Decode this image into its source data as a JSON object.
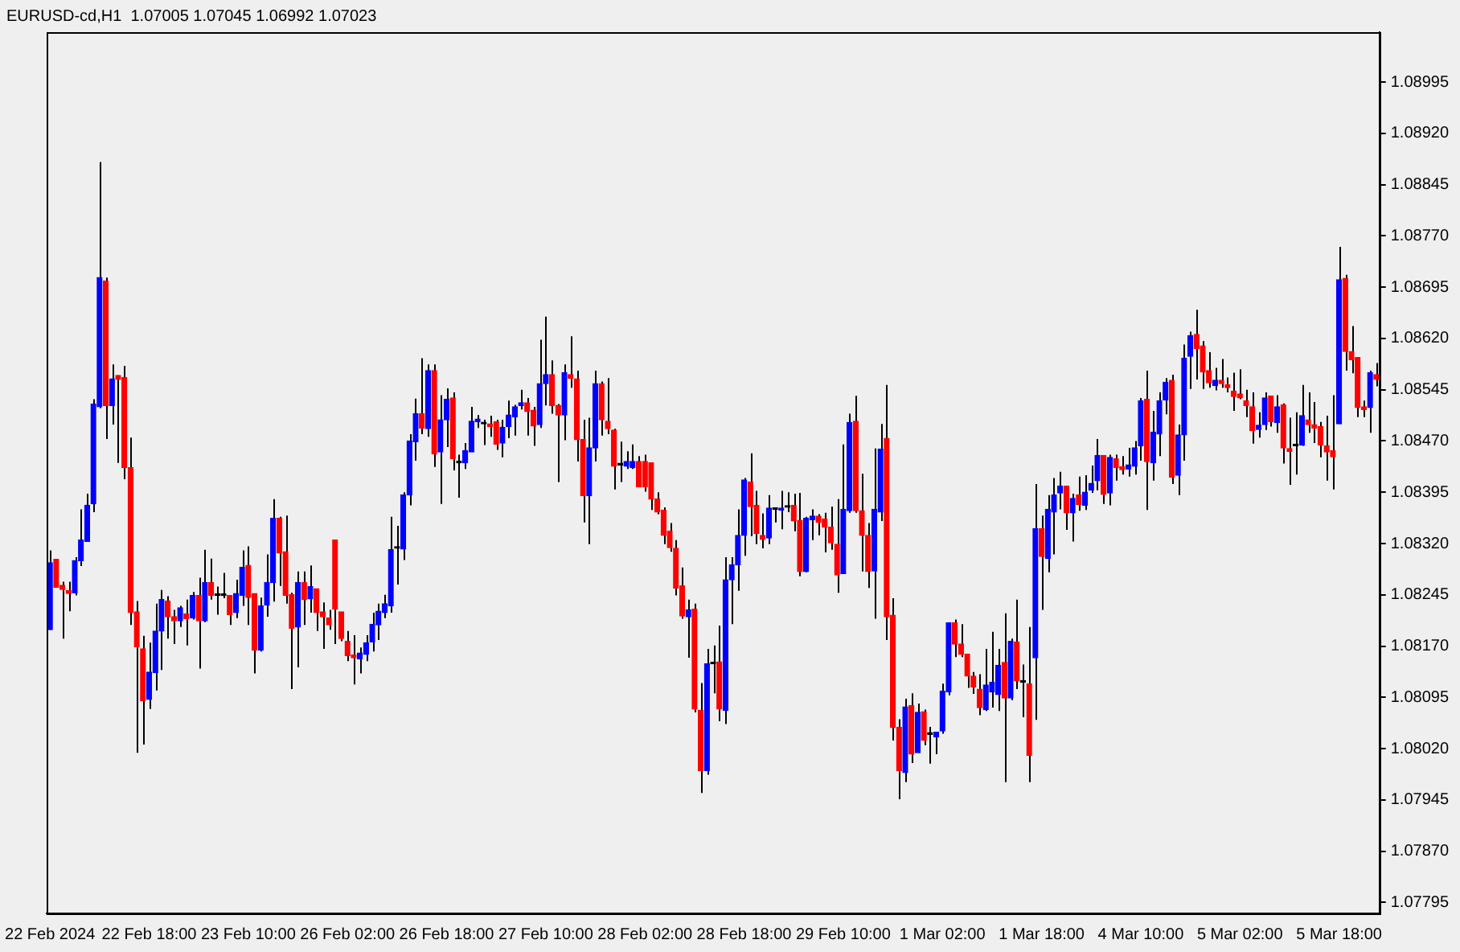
{
  "chart_data": {
    "type": "candlestick",
    "title": "EURUSD-cd,H1  1.07005 1.07045 1.06992 1.07023",
    "categories": [
      "22 Feb 2024",
      null,
      null,
      null,
      null,
      null,
      null,
      null,
      null,
      null,
      null,
      null,
      null,
      null,
      null,
      null,
      "22 Feb 18:00",
      null,
      null,
      null,
      null,
      null,
      null,
      null,
      null,
      null,
      null,
      null,
      null,
      null,
      null,
      null,
      "23 Feb 10:00",
      null,
      null,
      null,
      null,
      null,
      null,
      null,
      null,
      null,
      null,
      null,
      null,
      null,
      null,
      null,
      "26 Feb 02:00",
      null,
      null,
      null,
      null,
      null,
      null,
      null,
      null,
      null,
      null,
      null,
      null,
      null,
      null,
      null,
      "26 Feb 18:00",
      null,
      null,
      null,
      null,
      null,
      null,
      null,
      null,
      null,
      null,
      null,
      null,
      null,
      null,
      null,
      "27 Feb 10:00",
      null,
      null,
      null,
      null,
      null,
      null,
      null,
      null,
      null,
      null,
      null,
      null,
      null,
      null,
      null,
      "28 Feb 02:00",
      null,
      null,
      null,
      null,
      null,
      null,
      null,
      null,
      null,
      null,
      null,
      null,
      null,
      null,
      null,
      "28 Feb 18:00",
      null,
      null,
      null,
      null,
      null,
      null,
      null,
      null,
      null,
      null,
      null,
      null,
      null,
      null,
      null,
      "29 Feb 10:00",
      null,
      null,
      null,
      null,
      null,
      null,
      null,
      null,
      null,
      null,
      null,
      null,
      null,
      null,
      null,
      "1 Mar 02:00",
      null,
      null,
      null,
      null,
      null,
      null,
      null,
      null,
      null,
      null,
      null,
      null,
      null,
      null,
      null,
      "1 Mar 18:00",
      null,
      null,
      null,
      null,
      null,
      null,
      null,
      null,
      null,
      null,
      null,
      null,
      null,
      null,
      null,
      "4 Mar 10:00",
      null,
      null,
      null,
      null,
      null,
      null,
      null,
      null,
      null,
      null,
      null,
      null,
      null,
      null,
      null,
      "5 Mar 02:00",
      null,
      null,
      null,
      null,
      null,
      null,
      null,
      null,
      null,
      null,
      null,
      null,
      null,
      null,
      null,
      "5 Mar 18:00",
      null,
      null,
      null,
      null,
      null,
      null
    ],
    "ohlc": [
      [
        1.08194,
        1.0831,
        1.08194,
        1.08292
      ],
      [
        1.08297,
        1.08297,
        1.08256,
        1.08256
      ],
      [
        1.08259,
        1.08264,
        1.08181,
        1.08253
      ],
      [
        1.08251,
        1.08264,
        1.08221,
        1.08247
      ],
      [
        1.08248,
        1.083,
        1.08244,
        1.08295
      ],
      [
        1.08295,
        1.0837,
        1.08287,
        1.08325
      ],
      [
        1.08323,
        1.08393,
        1.08323,
        1.08376
      ],
      [
        1.08378,
        1.08531,
        1.08366,
        1.08524
      ],
      [
        1.0852,
        1.08878,
        1.08518,
        1.08709
      ],
      [
        1.08704,
        1.08709,
        1.08473,
        1.08522
      ],
      [
        1.08522,
        1.08582,
        1.08494,
        1.08561
      ],
      [
        1.08566,
        1.08566,
        1.08438,
        1.0856
      ],
      [
        1.08563,
        1.0858,
        1.08414,
        1.08431
      ],
      [
        1.08431,
        1.08475,
        1.08201,
        1.08219
      ],
      [
        1.0822,
        1.08236,
        1.08014,
        1.08169
      ],
      [
        1.08166,
        1.08185,
        1.08026,
        1.0809
      ],
      [
        1.08092,
        1.08175,
        1.08078,
        1.08132
      ],
      [
        1.08131,
        1.08232,
        1.08105,
        1.08192
      ],
      [
        1.08192,
        1.08252,
        1.08135,
        1.08238
      ],
      [
        1.08236,
        1.08243,
        1.08181,
        1.08213
      ],
      [
        1.08213,
        1.08223,
        1.08173,
        1.08207
      ],
      [
        1.08207,
        1.08229,
        1.08198,
        1.08226
      ],
      [
        1.08217,
        1.08238,
        1.08171,
        1.0821
      ],
      [
        1.08211,
        1.08249,
        1.08209,
        1.08244
      ],
      [
        1.08244,
        1.0827,
        1.08137,
        1.08207
      ],
      [
        1.08207,
        1.08311,
        1.08205,
        1.08263
      ],
      [
        1.08263,
        1.08298,
        1.08238,
        1.08244
      ],
      [
        1.08244,
        1.08257,
        1.08216,
        1.08244
      ],
      [
        1.08244,
        1.08277,
        1.0824,
        1.08244
      ],
      [
        1.08244,
        1.08244,
        1.08201,
        1.08216
      ],
      [
        1.08219,
        1.08267,
        1.08211,
        1.08247
      ],
      [
        1.08244,
        1.0831,
        1.08229,
        1.08285
      ],
      [
        1.08288,
        1.08316,
        1.08201,
        1.08241
      ],
      [
        1.08247,
        1.08247,
        1.0813,
        1.08164
      ],
      [
        1.08164,
        1.08241,
        1.08162,
        1.08229
      ],
      [
        1.0823,
        1.08304,
        1.08213,
        1.08263
      ],
      [
        1.08263,
        1.08385,
        1.08235,
        1.08357
      ],
      [
        1.08357,
        1.08359,
        1.08258,
        1.08306
      ],
      [
        1.08308,
        1.08361,
        1.08232,
        1.08244
      ],
      [
        1.08245,
        1.08248,
        1.08107,
        1.08196
      ],
      [
        1.08198,
        1.08279,
        1.08139,
        1.08263
      ],
      [
        1.08263,
        1.08279,
        1.08201,
        1.08238
      ],
      [
        1.08239,
        1.08288,
        1.08219,
        1.08257
      ],
      [
        1.08254,
        1.08254,
        1.08192,
        1.08219
      ],
      [
        1.0822,
        1.08234,
        1.08166,
        1.08213
      ],
      [
        1.08211,
        1.08223,
        1.08194,
        1.08201
      ],
      [
        1.08325,
        1.08325,
        1.08173,
        1.08224
      ],
      [
        1.0822,
        1.0822,
        1.08177,
        1.08181
      ],
      [
        1.08177,
        1.08192,
        1.08148,
        1.08156
      ],
      [
        1.08157,
        1.08186,
        1.08114,
        1.08153
      ],
      [
        1.08151,
        1.08168,
        1.0813,
        1.0816
      ],
      [
        1.08158,
        1.08186,
        1.08148,
        1.08175
      ],
      [
        1.08176,
        1.08219,
        1.08162,
        1.08202
      ],
      [
        1.08201,
        1.08232,
        1.08179,
        1.08221
      ],
      [
        1.08219,
        1.08245,
        1.08211,
        1.08232
      ],
      [
        1.08229,
        1.08359,
        1.08219,
        1.08311
      ],
      [
        1.08313,
        1.08346,
        1.0826,
        1.08313
      ],
      [
        1.08312,
        1.08395,
        1.08296,
        1.08391
      ],
      [
        1.08391,
        1.0848,
        1.08376,
        1.0847
      ],
      [
        1.08469,
        1.08532,
        1.08441,
        1.0851
      ],
      [
        1.0851,
        1.08591,
        1.0848,
        1.08489
      ],
      [
        1.08488,
        1.08582,
        1.08476,
        1.08573
      ],
      [
        1.08573,
        1.08582,
        1.08432,
        1.08451
      ],
      [
        1.08454,
        1.08537,
        1.08378,
        1.08501
      ],
      [
        1.08501,
        1.08547,
        1.08461,
        1.08531
      ],
      [
        1.08533,
        1.08541,
        1.08427,
        1.08444
      ],
      [
        1.08438,
        1.0845,
        1.08387,
        1.08438
      ],
      [
        1.08438,
        1.08467,
        1.08429,
        1.08456
      ],
      [
        1.08454,
        1.0852,
        1.08454,
        1.08499
      ],
      [
        1.08498,
        1.08508,
        1.08489,
        1.08502
      ],
      [
        1.08495,
        1.08501,
        1.08464,
        1.08495
      ],
      [
        1.08495,
        1.08507,
        1.08476,
        1.08491
      ],
      [
        1.08498,
        1.08501,
        1.08457,
        1.08465
      ],
      [
        1.08467,
        1.08501,
        1.08446,
        1.0849
      ],
      [
        1.08491,
        1.08529,
        1.08474,
        1.08508
      ],
      [
        1.08505,
        1.08523,
        1.08478,
        1.0852
      ],
      [
        1.08522,
        1.08545,
        1.08516,
        1.08526
      ],
      [
        1.08526,
        1.08533,
        1.08478,
        1.08513
      ],
      [
        1.08515,
        1.0852,
        1.08463,
        1.08492
      ],
      [
        1.08494,
        1.08618,
        1.08489,
        1.08554
      ],
      [
        1.08554,
        1.08652,
        1.08522,
        1.08567
      ],
      [
        1.08567,
        1.08588,
        1.0851,
        1.08522
      ],
      [
        1.08522,
        1.08524,
        1.0841,
        1.08508
      ],
      [
        1.08508,
        1.08582,
        1.08471,
        1.0857
      ],
      [
        1.08567,
        1.08623,
        1.08548,
        1.08562
      ],
      [
        1.08561,
        1.08573,
        1.0844,
        1.08472
      ],
      [
        1.08472,
        1.08501,
        1.08351,
        1.0839
      ],
      [
        1.0839,
        1.08504,
        1.08319,
        1.0846
      ],
      [
        1.0846,
        1.08573,
        1.0844,
        1.08554
      ],
      [
        1.08554,
        1.08557,
        1.08478,
        1.08501
      ],
      [
        1.08499,
        1.08562,
        1.0848,
        1.08488
      ],
      [
        1.08486,
        1.08488,
        1.08399,
        1.08433
      ],
      [
        1.08435,
        1.08469,
        1.0841,
        1.08435
      ],
      [
        1.08433,
        1.08455,
        1.08429,
        1.0844
      ],
      [
        1.08431,
        1.08465,
        1.08429,
        1.0844
      ],
      [
        1.0844,
        1.08448,
        1.08403,
        1.08403
      ],
      [
        1.0844,
        1.0845,
        1.08396,
        1.08403
      ],
      [
        1.08438,
        1.08438,
        1.08369,
        1.08385
      ],
      [
        1.08385,
        1.08395,
        1.08363,
        1.08366
      ],
      [
        1.08369,
        1.08373,
        1.08319,
        1.08332
      ],
      [
        1.08338,
        1.0835,
        1.08308,
        1.08314
      ],
      [
        1.08313,
        1.08325,
        1.08244,
        1.08255
      ],
      [
        1.08258,
        1.08285,
        1.0821,
        1.08214
      ],
      [
        1.08213,
        1.08238,
        1.08153,
        1.08223
      ],
      [
        1.08224,
        1.08232,
        1.08073,
        1.08078
      ],
      [
        1.08076,
        1.08116,
        1.07955,
        1.07988
      ],
      [
        1.07988,
        1.08166,
        1.07982,
        1.08144
      ],
      [
        1.08144,
        1.08171,
        1.08101,
        1.08144
      ],
      [
        1.08147,
        1.082,
        1.0806,
        1.08078
      ],
      [
        1.08076,
        1.083,
        1.08056,
        1.08267
      ],
      [
        1.08267,
        1.083,
        1.08202,
        1.08289
      ],
      [
        1.08289,
        1.0837,
        1.08251,
        1.08332
      ],
      [
        1.08332,
        1.08416,
        1.08302,
        1.08413
      ],
      [
        1.0841,
        1.08452,
        1.08331,
        1.08374
      ],
      [
        1.08376,
        1.08397,
        1.08319,
        1.08335
      ],
      [
        1.08332,
        1.08364,
        1.08313,
        1.08326
      ],
      [
        1.08328,
        1.08391,
        1.08319,
        1.08372
      ],
      [
        1.0837,
        1.08372,
        1.08351,
        1.0837
      ],
      [
        1.08369,
        1.08397,
        1.08341,
        1.08372
      ],
      [
        1.08373,
        1.08395,
        1.08366,
        1.08373
      ],
      [
        1.08376,
        1.08393,
        1.08338,
        1.08353
      ],
      [
        1.08354,
        1.08394,
        1.08272,
        1.08279
      ],
      [
        1.08279,
        1.08359,
        1.08278,
        1.08357
      ],
      [
        1.08355,
        1.0837,
        1.08325,
        1.0836
      ],
      [
        1.0836,
        1.08363,
        1.08332,
        1.08351
      ],
      [
        1.08356,
        1.08365,
        1.08307,
        1.08344
      ],
      [
        1.08344,
        1.08374,
        1.08311,
        1.08321
      ],
      [
        1.08319,
        1.08385,
        1.08248,
        1.08274
      ],
      [
        1.08276,
        1.08465,
        1.08276,
        1.0837
      ],
      [
        1.08368,
        1.0851,
        1.08365,
        1.08497
      ],
      [
        1.08499,
        1.08536,
        1.08365,
        1.08368
      ],
      [
        1.08368,
        1.08422,
        1.08279,
        1.08332
      ],
      [
        1.08332,
        1.0835,
        1.08255,
        1.08279
      ],
      [
        1.0828,
        1.08459,
        1.0821,
        1.0837
      ],
      [
        1.08366,
        1.08495,
        1.08353,
        1.08458
      ],
      [
        1.08474,
        1.08552,
        1.08179,
        1.08213
      ],
      [
        1.08215,
        1.0824,
        1.08032,
        1.08051
      ],
      [
        1.08051,
        1.08063,
        1.07946,
        1.07988
      ],
      [
        1.07985,
        1.08093,
        1.07971,
        1.08081
      ],
      [
        1.08083,
        1.08101,
        1.07999,
        1.08012
      ],
      [
        1.08014,
        1.08086,
        1.08014,
        1.08073
      ],
      [
        1.08074,
        1.08077,
        1.08025,
        1.08032
      ],
      [
        1.08041,
        1.08052,
        1.07998,
        1.08041
      ],
      [
        1.08037,
        1.08044,
        1.08012,
        1.08044
      ],
      [
        1.08046,
        1.08115,
        1.08042,
        1.08104
      ],
      [
        1.08103,
        1.08204,
        1.08098,
        1.08204
      ],
      [
        1.08204,
        1.08209,
        1.08154,
        1.08173
      ],
      [
        1.08173,
        1.08202,
        1.08154,
        1.08158
      ],
      [
        1.08158,
        1.08158,
        1.08109,
        1.08126
      ],
      [
        1.08126,
        1.08132,
        1.081,
        1.0811
      ],
      [
        1.08107,
        1.08129,
        1.08069,
        1.0808
      ],
      [
        1.08077,
        1.08166,
        1.08075,
        1.08113
      ],
      [
        1.08103,
        1.08191,
        1.0808,
        1.08117
      ],
      [
        1.08099,
        1.08166,
        1.08075,
        1.08142
      ],
      [
        1.08146,
        1.08218,
        1.07971,
        1.08094
      ],
      [
        1.08094,
        1.08181,
        1.08091,
        1.08177
      ],
      [
        1.08176,
        1.08238,
        1.08107,
        1.08119
      ],
      [
        1.08117,
        1.08143,
        1.08066,
        1.08117
      ],
      [
        1.08115,
        1.08198,
        1.07971,
        1.0801
      ],
      [
        1.08153,
        1.08407,
        1.08062,
        1.08342
      ],
      [
        1.08342,
        1.08361,
        1.08223,
        1.08301
      ],
      [
        1.08298,
        1.08391,
        1.08278,
        1.0837
      ],
      [
        1.08366,
        1.08416,
        1.08304,
        1.08391
      ],
      [
        1.08394,
        1.08425,
        1.0837,
        1.08404
      ],
      [
        1.08404,
        1.08404,
        1.0834,
        1.08365
      ],
      [
        1.08365,
        1.08393,
        1.08323,
        1.08386
      ],
      [
        1.08391,
        1.08418,
        1.08368,
        1.08377
      ],
      [
        1.08376,
        1.0842,
        1.08369,
        1.08395
      ],
      [
        1.08398,
        1.08434,
        1.08394,
        1.08408
      ],
      [
        1.08412,
        1.08473,
        1.08398,
        1.08449
      ],
      [
        1.08449,
        1.08449,
        1.08378,
        1.08392
      ],
      [
        1.08394,
        1.0845,
        1.08376,
        1.08446
      ],
      [
        1.08444,
        1.0845,
        1.08412,
        1.08431
      ],
      [
        1.08432,
        1.08448,
        1.08421,
        1.08428
      ],
      [
        1.08429,
        1.0846,
        1.08418,
        1.08435
      ],
      [
        1.08433,
        1.0847,
        1.08421,
        1.0846
      ],
      [
        1.08463,
        1.08533,
        1.08441,
        1.08529
      ],
      [
        1.08531,
        1.08573,
        1.08369,
        1.0844
      ],
      [
        1.08438,
        1.08514,
        1.08412,
        1.08483
      ],
      [
        1.0848,
        1.08541,
        1.08448,
        1.08529
      ],
      [
        1.0853,
        1.08562,
        1.08509,
        1.08556
      ],
      [
        1.08559,
        1.08567,
        1.08407,
        1.08417
      ],
      [
        1.0842,
        1.08494,
        1.08391,
        1.08479
      ],
      [
        1.08479,
        1.08611,
        1.08441,
        1.08591
      ],
      [
        1.08594,
        1.0863,
        1.08546,
        1.08624
      ],
      [
        1.08626,
        1.08662,
        1.0856,
        1.08605
      ],
      [
        1.08609,
        1.08616,
        1.08546,
        1.08571
      ],
      [
        1.08573,
        1.086,
        1.08548,
        1.08555
      ],
      [
        1.08551,
        1.08577,
        1.08544,
        1.08559
      ],
      [
        1.08559,
        1.0859,
        1.08548,
        1.08554
      ],
      [
        1.08552,
        1.08563,
        1.08541,
        1.08548
      ],
      [
        1.08543,
        1.0857,
        1.08514,
        1.08535
      ],
      [
        1.08539,
        1.08575,
        1.08531,
        1.08533
      ],
      [
        1.08529,
        1.08545,
        1.08505,
        1.08522
      ],
      [
        1.0852,
        1.08541,
        1.08466,
        1.08485
      ],
      [
        1.08487,
        1.08512,
        1.08475,
        1.08493
      ],
      [
        1.08494,
        1.08541,
        1.08486,
        1.08533
      ],
      [
        1.08536,
        1.08536,
        1.08491,
        1.08498
      ],
      [
        1.08497,
        1.08537,
        1.08482,
        1.0852
      ],
      [
        1.08523,
        1.08525,
        1.08437,
        1.0846
      ],
      [
        1.08459,
        1.08504,
        1.08406,
        1.08455
      ],
      [
        1.08463,
        1.08512,
        1.08421,
        1.08463
      ],
      [
        1.08464,
        1.08552,
        1.08463,
        1.08507
      ],
      [
        1.08501,
        1.08541,
        1.08482,
        1.08494
      ],
      [
        1.08494,
        1.08527,
        1.08467,
        1.08489
      ],
      [
        1.08491,
        1.08498,
        1.08446,
        1.08464
      ],
      [
        1.08463,
        1.08507,
        1.08412,
        1.08454
      ],
      [
        1.08456,
        1.08537,
        1.08399,
        1.08447
      ],
      [
        1.08495,
        1.08754,
        1.08495,
        1.08706
      ],
      [
        1.08708,
        1.08713,
        1.08573,
        1.08601
      ],
      [
        1.08601,
        1.08638,
        1.08569,
        1.08589
      ],
      [
        1.08592,
        1.08592,
        1.08505,
        1.08519
      ],
      [
        1.0852,
        1.08529,
        1.08505,
        1.08516
      ],
      [
        1.08519,
        1.08573,
        1.08482,
        1.0857
      ],
      [
        1.08567,
        1.08584,
        1.0855,
        1.0856
      ]
    ],
    "colors": [
      "#0000ff",
      "#ff0000",
      "#ff0000",
      "#ff0000",
      "#0000ff",
      "#0000ff",
      "#0000ff",
      "#0000ff",
      "#0000ff",
      "#ff0000",
      "#0000ff",
      "#ff0000",
      "#ff0000",
      "#ff0000",
      "#ff0000",
      "#ff0000",
      "#0000ff",
      "#0000ff",
      "#0000ff",
      "#ff0000",
      "#ff0000",
      "#0000ff",
      "#ff0000",
      "#0000ff",
      "#ff0000",
      "#0000ff",
      "#ff0000",
      "#000000",
      "#000000",
      "#ff0000",
      "#0000ff",
      "#0000ff",
      "#ff0000",
      "#ff0000",
      "#0000ff",
      "#0000ff",
      "#0000ff",
      "#ff0000",
      "#ff0000",
      "#ff0000",
      "#0000ff",
      "#ff0000",
      "#0000ff",
      "#ff0000",
      "#ff0000",
      "#ff0000",
      "#ff0000",
      "#ff0000",
      "#ff0000",
      "#ff0000",
      "#0000ff",
      "#0000ff",
      "#0000ff",
      "#0000ff",
      "#0000ff",
      "#0000ff",
      "#000000",
      "#0000ff",
      "#0000ff",
      "#0000ff",
      "#ff0000",
      "#0000ff",
      "#ff0000",
      "#0000ff",
      "#0000ff",
      "#ff0000",
      "#000000",
      "#0000ff",
      "#0000ff",
      "#0000ff",
      "#000000",
      "#ff0000",
      "#ff0000",
      "#0000ff",
      "#0000ff",
      "#0000ff",
      "#0000ff",
      "#ff0000",
      "#ff0000",
      "#0000ff",
      "#0000ff",
      "#ff0000",
      "#ff0000",
      "#0000ff",
      "#ff0000",
      "#ff0000",
      "#ff0000",
      "#0000ff",
      "#0000ff",
      "#ff0000",
      "#ff0000",
      "#ff0000",
      "#000000",
      "#0000ff",
      "#0000ff",
      "#ff0000",
      "#ff0000",
      "#ff0000",
      "#ff0000",
      "#ff0000",
      "#ff0000",
      "#ff0000",
      "#ff0000",
      "#0000ff",
      "#ff0000",
      "#ff0000",
      "#0000ff",
      "#000000",
      "#ff0000",
      "#0000ff",
      "#0000ff",
      "#0000ff",
      "#0000ff",
      "#ff0000",
      "#ff0000",
      "#ff0000",
      "#0000ff",
      "#000000",
      "#0000ff",
      "#000000",
      "#ff0000",
      "#ff0000",
      "#0000ff",
      "#0000ff",
      "#ff0000",
      "#ff0000",
      "#ff0000",
      "#ff0000",
      "#0000ff",
      "#0000ff",
      "#ff0000",
      "#ff0000",
      "#ff0000",
      "#0000ff",
      "#0000ff",
      "#ff0000",
      "#ff0000",
      "#ff0000",
      "#0000ff",
      "#ff0000",
      "#0000ff",
      "#ff0000",
      "#000000",
      "#0000ff",
      "#0000ff",
      "#0000ff",
      "#ff0000",
      "#ff0000",
      "#ff0000",
      "#ff0000",
      "#ff0000",
      "#0000ff",
      "#0000ff",
      "#0000ff",
      "#ff0000",
      "#0000ff",
      "#ff0000",
      "#000000",
      "#ff0000",
      "#0000ff",
      "#ff0000",
      "#0000ff",
      "#0000ff",
      "#0000ff",
      "#ff0000",
      "#0000ff",
      "#ff0000",
      "#0000ff",
      "#0000ff",
      "#0000ff",
      "#ff0000",
      "#0000ff",
      "#ff0000",
      "#ff0000",
      "#0000ff",
      "#0000ff",
      "#0000ff",
      "#ff0000",
      "#0000ff",
      "#0000ff",
      "#0000ff",
      "#ff0000",
      "#0000ff",
      "#0000ff",
      "#0000ff",
      "#ff0000",
      "#ff0000",
      "#ff0000",
      "#0000ff",
      "#ff0000",
      "#ff0000",
      "#ff0000",
      "#ff0000",
      "#ff0000",
      "#ff0000",
      "#0000ff",
      "#0000ff",
      "#ff0000",
      "#0000ff",
      "#ff0000",
      "#ff0000",
      "#000000",
      "#0000ff",
      "#ff0000",
      "#ff0000",
      "#ff0000",
      "#ff0000",
      "#ff0000",
      "#0000ff",
      "#ff0000",
      "#ff0000",
      "#ff0000",
      "#ff0000",
      "#0000ff",
      "#ff0000"
    ],
    "ylim": [
      1.07779,
      1.09068
    ],
    "yticks": [
      1.07795,
      {
        "value": 1.0787,
        "label": "1.07870"
      },
      1.07945,
      {
        "value": 1.0802,
        "label": "1.08020"
      },
      1.08095,
      {
        "value": 1.0817,
        "label": "1.08170"
      },
      1.08245,
      {
        "value": 1.0832,
        "label": "1.08320"
      },
      1.08395,
      {
        "value": 1.0847,
        "label": "1.08470"
      },
      1.08545,
      {
        "value": 1.0862,
        "label": "1.08620"
      },
      1.08695,
      {
        "value": 1.0877,
        "label": "1.08770"
      },
      1.08845,
      {
        "value": 1.0892,
        "label": "1.08920"
      },
      1.08995
    ]
  }
}
